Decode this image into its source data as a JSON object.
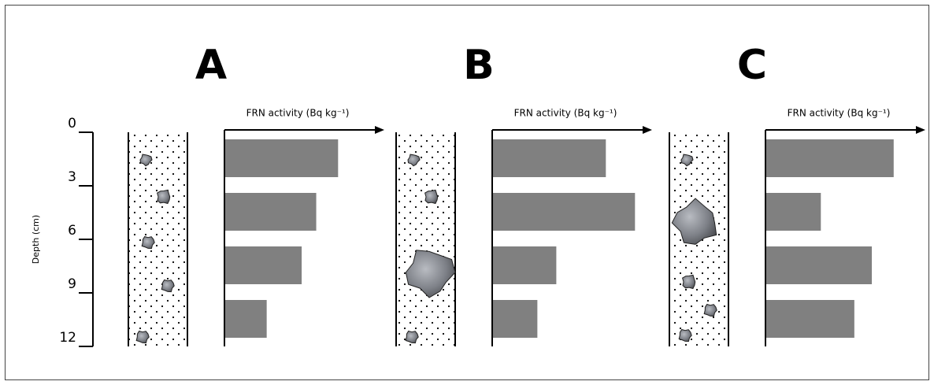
{
  "chart_data": [
    {
      "type": "bar",
      "orientation": "horizontal",
      "title": "A",
      "x_label": "FRN activity (Bq kg⁻¹)",
      "y_label": "Depth (cm)",
      "categories": [
        null,
        null,
        null,
        null
      ],
      "values": [
        78,
        63,
        53,
        29
      ],
      "color": "#808080",
      "xlim": [
        0,
        100
      ],
      "ylim": [
        0,
        12
      ],
      "yticks": [
        0,
        3,
        6,
        9,
        12
      ]
    },
    {
      "type": "bar",
      "orientation": "horizontal",
      "title": "B",
      "x_label": "FRN activity (Bq kg⁻¹)",
      "categories": [
        null,
        null,
        null,
        null
      ],
      "values": [
        78,
        98,
        44,
        31
      ],
      "color": "#808080",
      "xlim": [
        0,
        100
      ],
      "ylim": [
        0,
        12
      ]
    },
    {
      "type": "bar",
      "orientation": "horizontal",
      "title": "C",
      "x_label": "FRN activity (Bq kg⁻¹)",
      "categories": [
        null,
        null,
        null,
        null
      ],
      "values": [
        88,
        38,
        73,
        61
      ],
      "color": "#808080",
      "xlim": [
        0,
        100
      ],
      "ylim": [
        0,
        12
      ]
    }
  ]
}
